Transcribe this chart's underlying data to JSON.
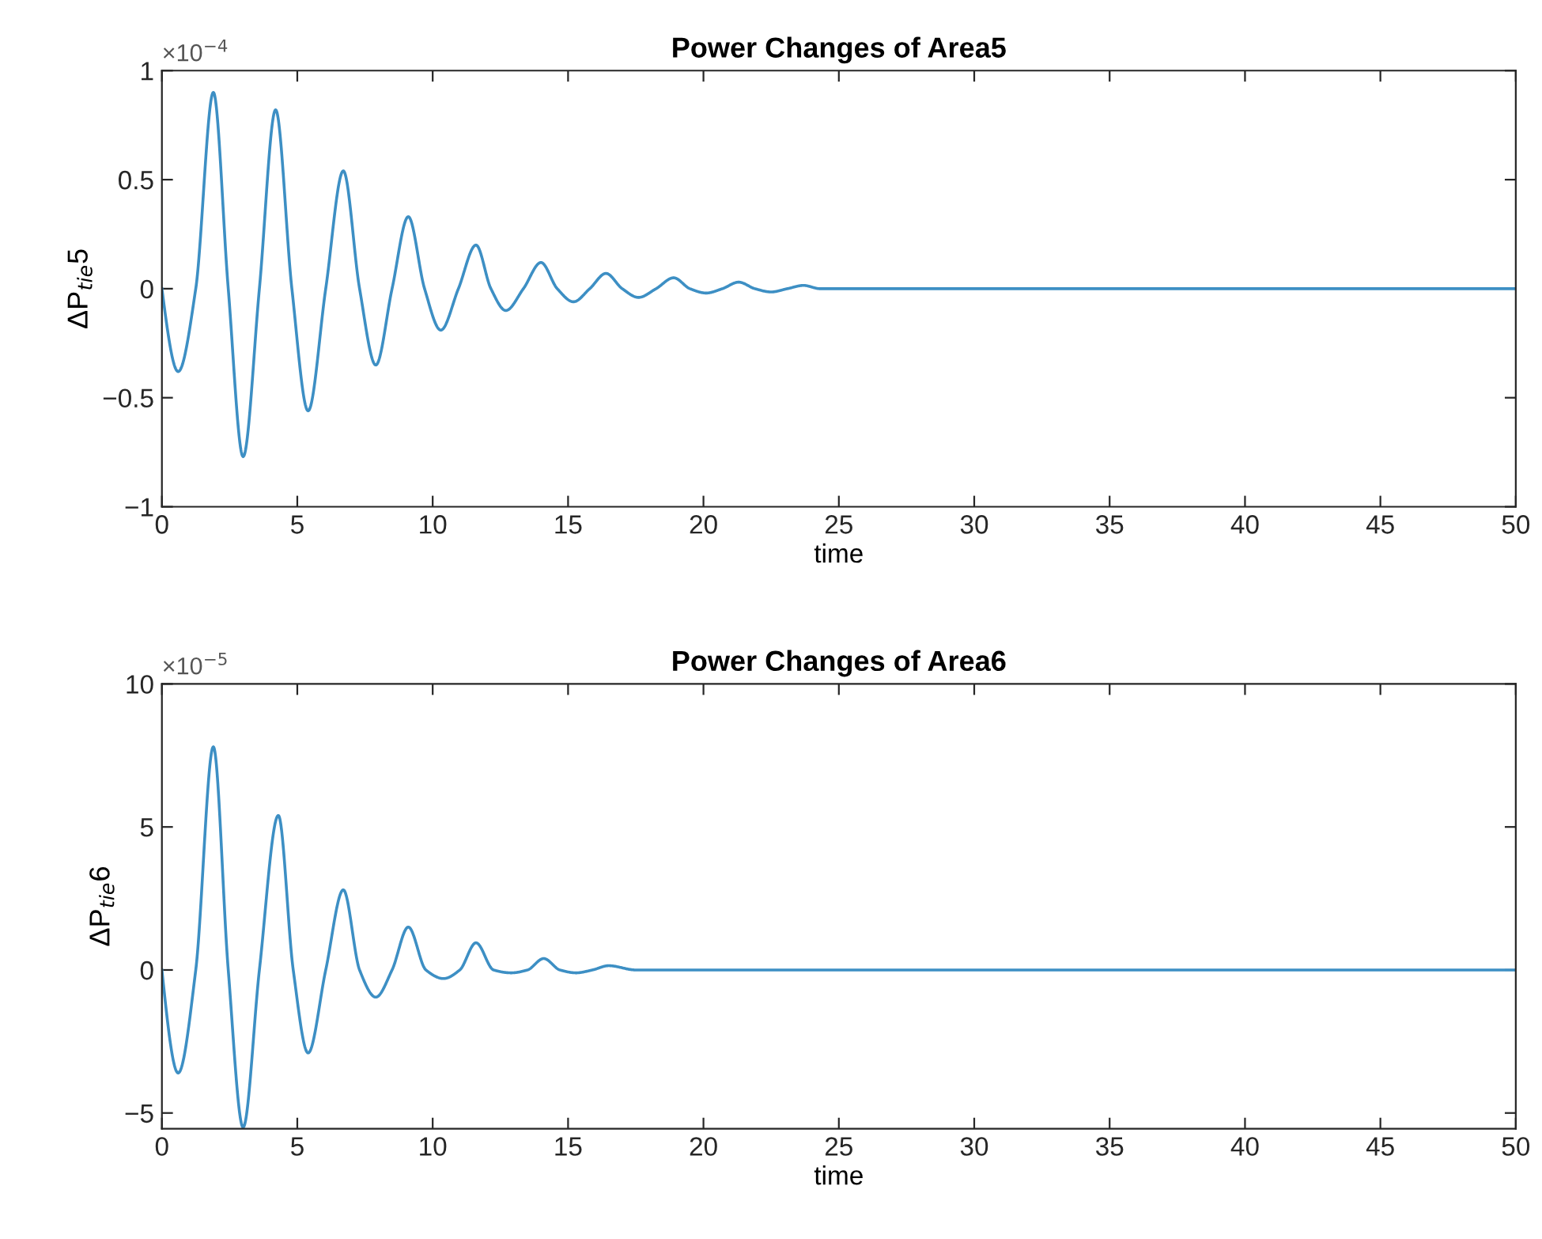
{
  "chart_data": [
    {
      "type": "line",
      "title": "Power Changes of Area5",
      "xlabel": "time",
      "ylabel": "ΔP$_{tie}$5",
      "annotations": [
        "×10$^{−4}$"
      ],
      "xlim": [
        0,
        50
      ],
      "ylim": [
        -1,
        1
      ],
      "xticks": [
        0,
        5,
        10,
        15,
        20,
        25,
        30,
        35,
        40,
        45,
        50
      ],
      "yticks": [
        -1,
        -0.5,
        0,
        0.5,
        1
      ],
      "grid": false,
      "legend": false,
      "marker": "none",
      "line_style": "solid",
      "series": [
        {
          "color": "#3d8fc4",
          "x": [
            0,
            0.6,
            1.25,
            1.9,
            2.45,
            3.0,
            3.6,
            4.2,
            4.8,
            5.4,
            6.05,
            6.7,
            7.3,
            7.9,
            8.5,
            9.1,
            9.7,
            10.3,
            10.95,
            11.6,
            12.15,
            12.7,
            13.35,
            14.0,
            14.6,
            15.2,
            15.8,
            16.4,
            17.0,
            17.6,
            18.25,
            18.9,
            19.5,
            20.1,
            20.7,
            21.3,
            21.9,
            22.5,
            23.1,
            23.7,
            24.3,
            26,
            30,
            40,
            50
          ],
          "values": [
            0,
            -0.38,
            0,
            0.9,
            0,
            -0.77,
            0,
            0.82,
            0,
            -0.56,
            0,
            0.54,
            0,
            -0.35,
            0,
            0.33,
            0,
            -0.19,
            0,
            0.2,
            0,
            -0.1,
            0,
            0.12,
            0,
            -0.06,
            0,
            0.07,
            0,
            -0.04,
            0,
            0.05,
            0,
            -0.02,
            0,
            0.03,
            0,
            -0.015,
            0,
            0.015,
            0,
            0,
            0,
            0,
            0
          ]
        }
      ]
    },
    {
      "type": "line",
      "title": "Power Changes of Area6",
      "xlabel": "time",
      "ylabel": "ΔP$_{tie}$6",
      "annotations": [
        "×10$^{−5}$"
      ],
      "xlim": [
        0,
        50
      ],
      "ylim": [
        -5.55,
        10
      ],
      "xticks": [
        0,
        5,
        10,
        15,
        20,
        25,
        30,
        35,
        40,
        45,
        50
      ],
      "yticks": [
        -5,
        0,
        5,
        10
      ],
      "grid": false,
      "legend": false,
      "marker": "none",
      "line_style": "solid",
      "series": [
        {
          "color": "#3d8fc4",
          "x": [
            0,
            0.6,
            1.25,
            1.9,
            2.45,
            3.0,
            3.6,
            4.3,
            4.85,
            5.4,
            6.05,
            6.7,
            7.3,
            7.9,
            8.5,
            9.1,
            9.75,
            10.4,
            11.0,
            11.6,
            12.25,
            12.9,
            13.5,
            14.1,
            14.7,
            15.3,
            15.9,
            16.5,
            17.5,
            20,
            25,
            30,
            40,
            50
          ],
          "values": [
            0,
            -3.6,
            0,
            7.8,
            0,
            -5.5,
            0,
            5.4,
            0,
            -2.9,
            0,
            2.8,
            0,
            -0.95,
            0,
            1.5,
            0,
            -0.3,
            0,
            0.95,
            0,
            -0.1,
            0,
            0.4,
            0,
            -0.1,
            0,
            0.15,
            0,
            0,
            0,
            0,
            0,
            0
          ]
        }
      ]
    }
  ]
}
